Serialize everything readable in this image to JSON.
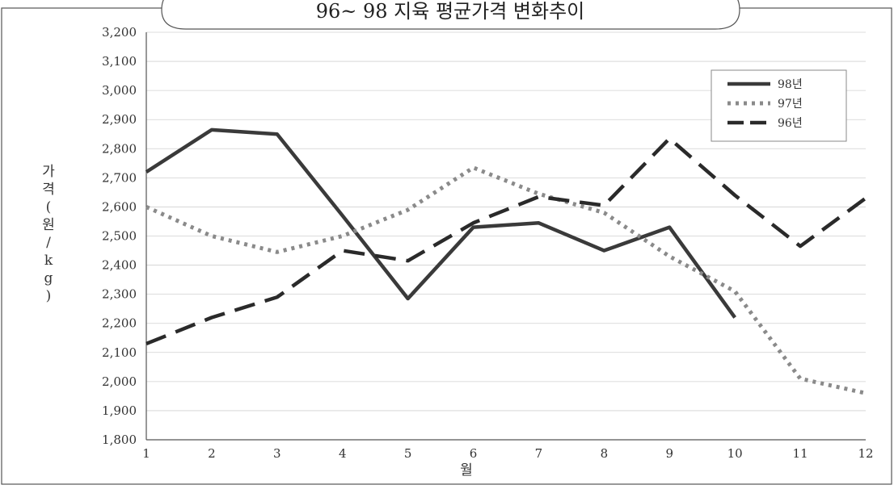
{
  "chart_data": {
    "type": "line",
    "title": "96~ 98 지육 평균가격 변화추이",
    "xlabel": "월",
    "ylabel": "가격(원/kg)",
    "ylim": [
      1800,
      3200
    ],
    "ytick_step": 100,
    "categories": [
      "1",
      "2",
      "3",
      "4",
      "5",
      "6",
      "7",
      "8",
      "9",
      "10",
      "11",
      "12"
    ],
    "grid": true,
    "legend_position": "top-right",
    "series": [
      {
        "name": "98년",
        "style": "solid",
        "color": "#3a3a3a",
        "values": [
          2720,
          2865,
          2850,
          2570,
          2285,
          2530,
          2545,
          2450,
          2530,
          2220,
          null,
          null
        ]
      },
      {
        "name": "97년",
        "style": "dotted",
        "color": "#8a8a8a",
        "values": [
          2600,
          2500,
          2445,
          2500,
          2590,
          2735,
          2645,
          2580,
          2430,
          2310,
          2010,
          1960
        ]
      },
      {
        "name": "96년",
        "style": "dashed",
        "color": "#2a2a2a",
        "values": [
          2130,
          2220,
          2290,
          2450,
          2415,
          2545,
          2635,
          2605,
          2835,
          2640,
          2465,
          2630
        ]
      }
    ]
  }
}
